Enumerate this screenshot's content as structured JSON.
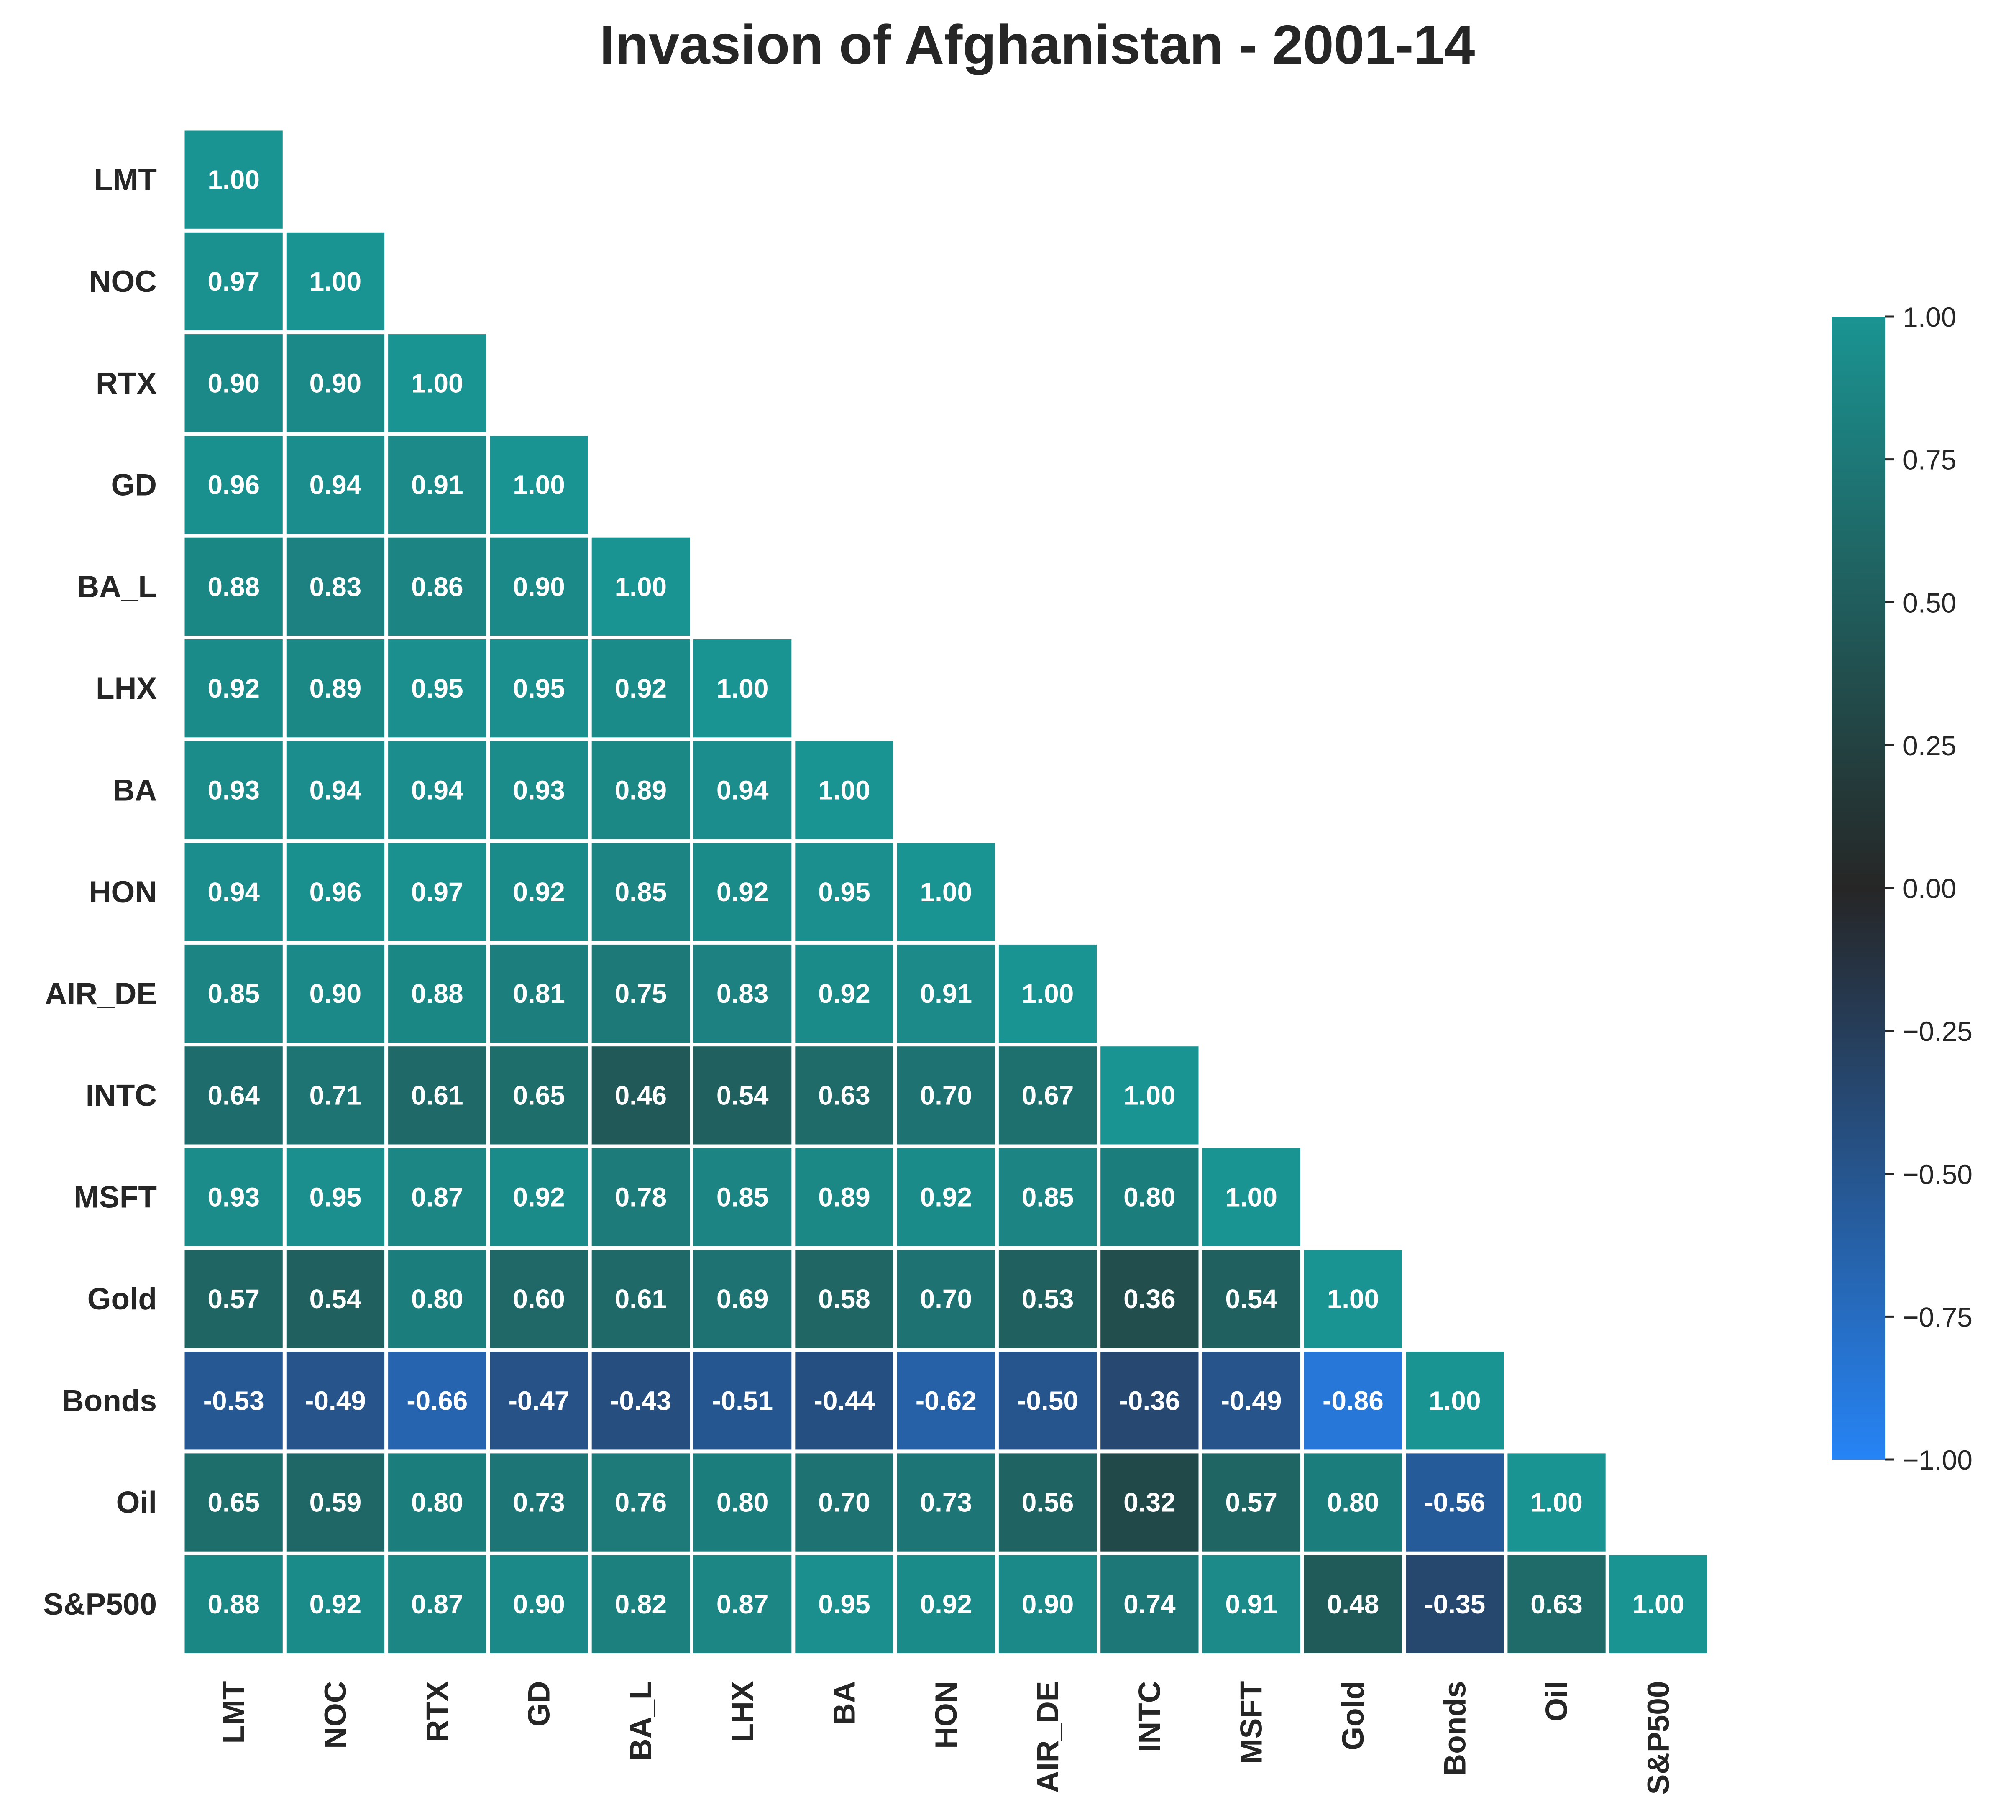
{
  "chart_data": {
    "type": "heatmap",
    "title": "Invasion of Afghanistan - 2001-14",
    "labels": [
      "LMT",
      "NOC",
      "RTX",
      "GD",
      "BA_L",
      "LHX",
      "BA",
      "HON",
      "AIR_DE",
      "INTC",
      "MSFT",
      "Gold",
      "Bonds",
      "Oil",
      "S&P500"
    ],
    "mask": "upper triangle (lower triangle incl. diagonal shown)",
    "values": [
      [
        1.0
      ],
      [
        0.97,
        1.0
      ],
      [
        0.9,
        0.9,
        1.0
      ],
      [
        0.96,
        0.94,
        0.91,
        1.0
      ],
      [
        0.88,
        0.83,
        0.86,
        0.9,
        1.0
      ],
      [
        0.92,
        0.89,
        0.95,
        0.95,
        0.92,
        1.0
      ],
      [
        0.93,
        0.94,
        0.94,
        0.93,
        0.89,
        0.94,
        1.0
      ],
      [
        0.94,
        0.96,
        0.97,
        0.92,
        0.85,
        0.92,
        0.95,
        1.0
      ],
      [
        0.85,
        0.9,
        0.88,
        0.81,
        0.75,
        0.83,
        0.92,
        0.91,
        1.0
      ],
      [
        0.64,
        0.71,
        0.61,
        0.65,
        0.46,
        0.54,
        0.63,
        0.7,
        0.67,
        1.0
      ],
      [
        0.93,
        0.95,
        0.87,
        0.92,
        0.78,
        0.85,
        0.89,
        0.92,
        0.85,
        0.8,
        1.0
      ],
      [
        0.57,
        0.54,
        0.8,
        0.6,
        0.61,
        0.69,
        0.58,
        0.7,
        0.53,
        0.36,
        0.54,
        1.0
      ],
      [
        -0.53,
        -0.49,
        -0.66,
        -0.47,
        -0.43,
        -0.51,
        -0.44,
        -0.62,
        -0.5,
        -0.36,
        -0.49,
        -0.86,
        1.0
      ],
      [
        0.65,
        0.59,
        0.8,
        0.73,
        0.76,
        0.8,
        0.7,
        0.73,
        0.56,
        0.32,
        0.57,
        0.8,
        -0.56,
        1.0
      ],
      [
        0.88,
        0.92,
        0.87,
        0.9,
        0.82,
        0.87,
        0.95,
        0.92,
        0.9,
        0.74,
        0.91,
        0.48,
        -0.35,
        0.63,
        1.0
      ]
    ],
    "colorbar": {
      "range": [
        -1.0,
        1.0
      ],
      "ticks": [
        "1.00",
        "0.75",
        "0.50",
        "0.25",
        "0.00",
        "−0.25",
        "−0.50",
        "−0.75",
        "−1.00"
      ],
      "colors": {
        "negative": "#2684F5",
        "zero": "#262626",
        "positive": "#1A9492"
      }
    }
  }
}
